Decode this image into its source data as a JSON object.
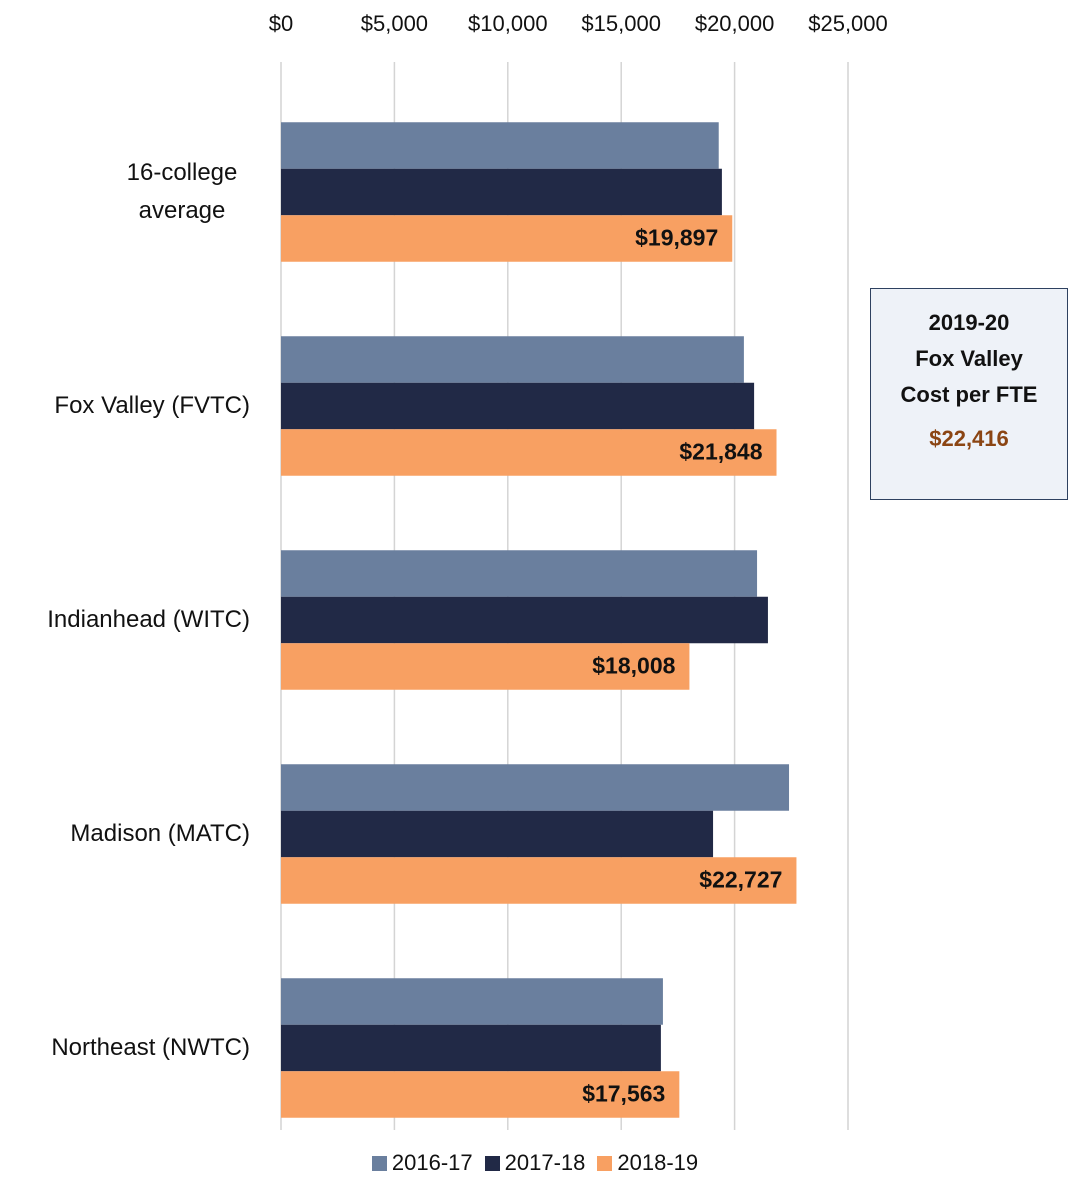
{
  "chart_data": {
    "type": "bar",
    "orientation": "horizontal",
    "categories": [
      "16-college average",
      "Fox Valley (FVTC)",
      "Indianhead (WITC)",
      "Madison (MATC)",
      "Northeast (NWTC)"
    ],
    "series": [
      {
        "name": "2016-17",
        "color": "#6a7f9e",
        "values": [
          19300,
          20410,
          20990,
          22400,
          16840
        ]
      },
      {
        "name": "2017-18",
        "color": "#212946",
        "values": [
          19440,
          20860,
          21470,
          19050,
          16750
        ]
      },
      {
        "name": "2018-19",
        "color": "#f8a062",
        "values": [
          19897,
          21848,
          18008,
          22727,
          17563
        ],
        "value_labels": [
          "$19,897",
          "$21,848",
          "$18,008",
          "$22,727",
          "$17,563"
        ]
      }
    ],
    "xlim": [
      0,
      25000
    ],
    "xticks": [
      {
        "value": 0,
        "label": "$0"
      },
      {
        "value": 5000,
        "label": "$5,000"
      },
      {
        "value": 10000,
        "label": "$10,000"
      },
      {
        "value": 15000,
        "label": "$15,000"
      },
      {
        "value": 20000,
        "label": "$20,000"
      },
      {
        "value": 25000,
        "label": "$25,000"
      }
    ],
    "grid": true,
    "legend": "bottom",
    "annotation": {
      "lines": [
        "2019-20",
        "Fox Valley",
        "Cost per FTE"
      ],
      "value": "$22,416"
    }
  }
}
